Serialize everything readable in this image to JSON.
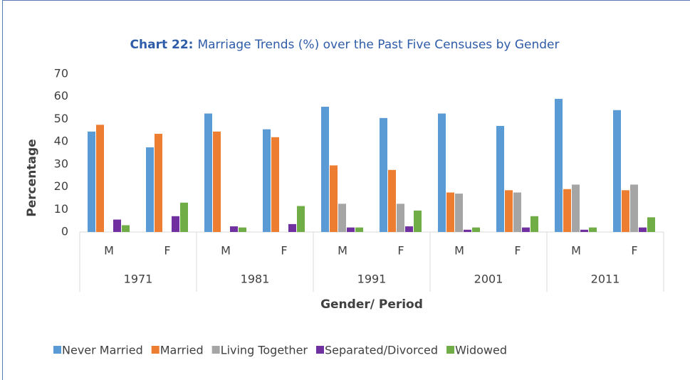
{
  "chart_data": {
    "type": "bar",
    "title_number": "Chart 22:",
    "title": "Marriage Trends (%) over the Past Five Censuses by Gender",
    "x_label": "Gender/ Period",
    "y_label": "Percentage",
    "groups": [
      {
        "label": "1971",
        "categories": [
          "M",
          "F"
        ]
      },
      {
        "label": "1981",
        "categories": [
          "M",
          "F"
        ]
      },
      {
        "label": "1991",
        "categories": [
          "M",
          "F"
        ]
      },
      {
        "label": "2001",
        "categories": [
          "M",
          "F"
        ]
      },
      {
        "label": "2011",
        "categories": [
          "M",
          "F"
        ]
      }
    ],
    "series": [
      {
        "name": "Never Married",
        "color": "#5b9bd5",
        "values": [
          44.5,
          37.5,
          52.5,
          45.5,
          55.5,
          50.5,
          52.5,
          47,
          59,
          54
        ]
      },
      {
        "name": "Married",
        "color": "#ed7d31",
        "values": [
          47.5,
          43.5,
          44.5,
          42,
          29.5,
          27.5,
          17.5,
          18.5,
          19,
          18.5
        ]
      },
      {
        "name": "Living Together",
        "color": "#a5a5a5",
        "values": [
          0,
          0,
          0,
          0,
          12.5,
          12.5,
          17,
          17.5,
          21,
          21
        ]
      },
      {
        "name": "Separated/Divorced",
        "color": "#7030a0",
        "values": [
          5.5,
          7,
          2.5,
          3.5,
          2,
          2.5,
          1,
          2,
          1,
          2
        ]
      },
      {
        "name": "Widowed",
        "color": "#70ad47",
        "values": [
          3,
          13,
          2,
          11.5,
          2,
          9.5,
          2,
          7,
          2,
          6.5
        ]
      }
    ],
    "ylim": [
      0,
      70
    ],
    "yticks": [
      0,
      10,
      20,
      30,
      40,
      50,
      60,
      70
    ],
    "grid": false
  }
}
